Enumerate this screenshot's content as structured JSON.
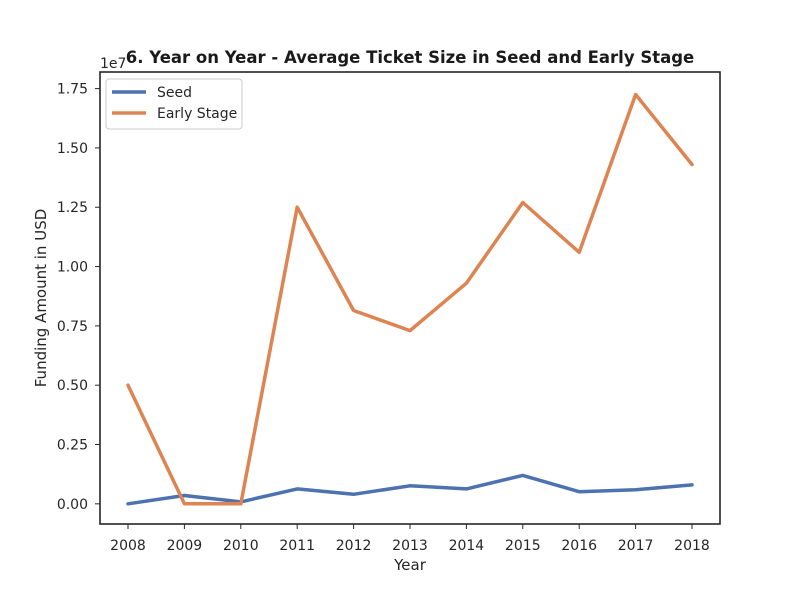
{
  "chart_data": {
    "type": "line",
    "title": "6. Year on Year - Average Ticket Size in Seed and Early Stage",
    "xlabel": "Year",
    "ylabel": "Funding Amount in USD",
    "y_offset_label": "1e7",
    "categories": [
      "2008",
      "2009",
      "2010",
      "2011",
      "2012",
      "2013",
      "2014",
      "2015",
      "2016",
      "2017",
      "2018"
    ],
    "ylim": [
      -850000,
      18200000
    ],
    "y_ticks": [
      0,
      2500000,
      5000000,
      7500000,
      10000000,
      12500000,
      15000000,
      17500000
    ],
    "y_tick_labels": [
      "0.00",
      "0.25",
      "0.50",
      "0.75",
      "1.00",
      "1.25",
      "1.50",
      "1.75"
    ],
    "grid": false,
    "legend_position": "top-left",
    "series": [
      {
        "name": "Seed",
        "color": "#4c72b0",
        "values": [
          0,
          350000,
          80000,
          630000,
          400000,
          760000,
          630000,
          1200000,
          510000,
          590000,
          800000
        ]
      },
      {
        "name": "Early Stage",
        "color": "#dd8452",
        "values": [
          5000000,
          0,
          0,
          12500000,
          8150000,
          7300000,
          9300000,
          12700000,
          10600000,
          17250000,
          14300000
        ]
      }
    ]
  }
}
